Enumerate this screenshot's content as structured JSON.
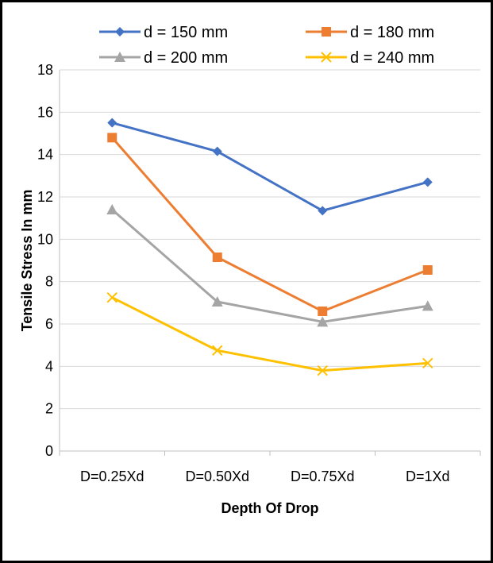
{
  "chart_data": {
    "type": "line",
    "title": "",
    "xlabel": "Depth Of Drop",
    "ylabel": "Tensile Stress In mm",
    "categories": [
      "D=0.25Xd",
      "D=0.50Xd",
      "D=0.75Xd",
      "D=1Xd"
    ],
    "ylim": [
      0,
      18
    ],
    "yticks": [
      0,
      2,
      4,
      6,
      8,
      10,
      12,
      14,
      16,
      18
    ],
    "grid": "horizontal",
    "legend_position": "top",
    "series": [
      {
        "name": "d = 150 mm",
        "values": [
          15.5,
          14.15,
          11.35,
          12.7
        ],
        "color": "#4472C4",
        "marker": "diamond"
      },
      {
        "name": "d = 180 mm",
        "values": [
          14.8,
          9.15,
          6.6,
          8.55
        ],
        "color": "#ED7D31",
        "marker": "square"
      },
      {
        "name": "d = 200 mm",
        "values": [
          11.4,
          7.05,
          6.1,
          6.85
        ],
        "color": "#A5A5A5",
        "marker": "triangle"
      },
      {
        "name": "d = 240 mm",
        "values": [
          7.25,
          4.75,
          3.8,
          4.15
        ],
        "color": "#FFC000",
        "marker": "x"
      }
    ]
  }
}
